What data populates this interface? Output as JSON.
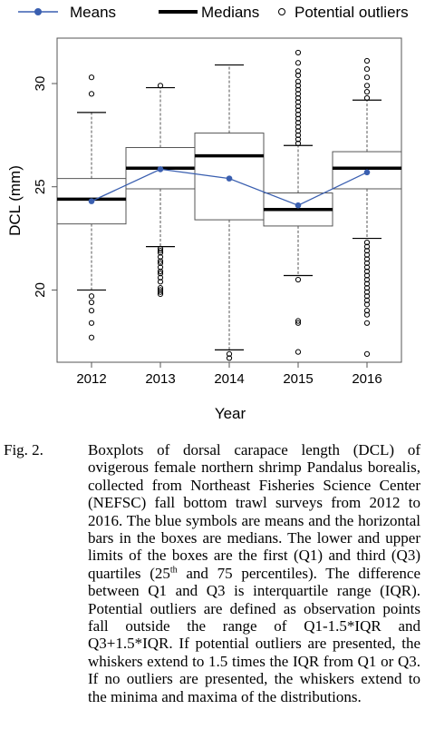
{
  "chart_data": {
    "type": "boxplot",
    "title": "",
    "xlabel": "Year",
    "ylabel": "DCL (mm)",
    "categories": [
      "2012",
      "2013",
      "2014",
      "2015",
      "2016"
    ],
    "y_ticks": [
      20,
      25,
      30
    ],
    "ylim": [
      16.5,
      32.2
    ],
    "grid": false,
    "legend": {
      "position": "top",
      "entries": [
        {
          "label": "Means",
          "style": "line-point",
          "color": "#3a5fb0"
        },
        {
          "label": "Medians",
          "style": "thick-line",
          "color": "#000000"
        },
        {
          "label": "Potential outliers",
          "style": "open-circle",
          "color": "#000000"
        }
      ]
    },
    "colors": {
      "mean": "#3a5fb0",
      "box": "#555555",
      "whisker": "#555555",
      "median": "#000000"
    },
    "boxes": [
      {
        "year": "2012",
        "whisker_low": 20.0,
        "q1": 23.2,
        "median": 24.4,
        "q3": 25.4,
        "whisker_high": 28.6,
        "mean": 24.3,
        "outliers": [
          17.7,
          18.4,
          19.0,
          19.4,
          19.7,
          29.5,
          30.3
        ]
      },
      {
        "year": "2013",
        "whisker_low": 22.1,
        "q1": 24.9,
        "median": 25.9,
        "q3": 26.9,
        "whisker_high": 29.8,
        "mean": 25.85,
        "outliers": [
          19.8,
          19.9,
          20.0,
          20.1,
          20.4,
          20.6,
          20.8,
          20.9,
          21.1,
          21.3,
          21.4,
          21.6,
          21.8,
          21.9,
          22.0,
          29.9
        ]
      },
      {
        "year": "2014",
        "whisker_low": 17.1,
        "q1": 23.4,
        "median": 26.5,
        "q3": 27.6,
        "whisker_high": 30.9,
        "mean": 25.4,
        "outliers": [
          16.7,
          16.9
        ]
      },
      {
        "year": "2015",
        "whisker_low": 20.7,
        "q1": 23.1,
        "median": 23.9,
        "q3": 24.7,
        "whisker_high": 27.0,
        "mean": 24.1,
        "outliers": [
          17.0,
          18.4,
          18.5,
          20.5,
          27.1,
          27.3,
          27.5,
          27.7,
          27.9,
          28.1,
          28.3,
          28.5,
          28.7,
          28.9,
          29.1,
          29.3,
          29.5,
          29.7,
          29.9,
          30.1,
          30.4,
          30.6,
          31.0,
          31.5
        ]
      },
      {
        "year": "2016",
        "whisker_low": 22.5,
        "q1": 24.9,
        "median": 25.9,
        "q3": 26.7,
        "whisker_high": 29.2,
        "mean": 25.7,
        "outliers": [
          16.9,
          18.4,
          18.8,
          19.0,
          19.3,
          19.5,
          19.7,
          19.9,
          20.1,
          20.3,
          20.5,
          20.7,
          20.9,
          21.1,
          21.3,
          21.5,
          21.7,
          21.9,
          22.1,
          22.3,
          29.3,
          29.6,
          29.9,
          30.3,
          30.7,
          31.1
        ]
      }
    ]
  },
  "caption": {
    "label": "Fig. 2.",
    "text_part1": "Boxplots of dorsal carapace length (DCL) of ovigerous female northern shrimp Pandalus borealis, collected from Northeast Fisheries Science Center (NEFSC) fall bottom trawl surveys from 2012 to 2016. The blue symbols are means and the horizontal bars in the boxes are medians. The lower and upper limits of the boxes are the first (Q1) and third (Q3) quartiles (25",
    "sup1": "th",
    "text_part2": " and 75 percentiles). The difference between Q1 and Q3 is interquartile range (IQR). Potential outliers are defined as observation points fall outside the range of Q1-1.5*IQR and Q3+1.5*IQR. If potential outliers are presented, the whiskers extend to 1.5 times the IQR from Q1 or Q3. If no outliers are presented, the whiskers extend to the minima and maxima of the distributions."
  }
}
